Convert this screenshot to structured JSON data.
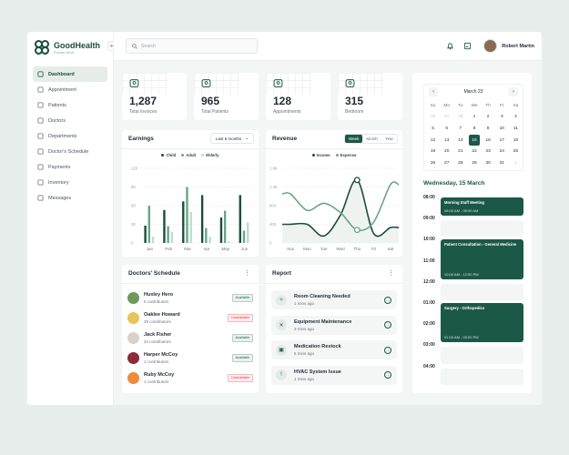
{
  "brand": {
    "name": "GoodHealth",
    "tagline": "Private clinic"
  },
  "sidebar": {
    "items": [
      {
        "label": "Dashboard",
        "icon": "grid-icon",
        "active": true
      },
      {
        "label": "Appointment",
        "icon": "calendar-icon"
      },
      {
        "label": "Patients",
        "icon": "patient-icon"
      },
      {
        "label": "Doctors",
        "icon": "stethoscope-icon"
      },
      {
        "label": "Departments",
        "icon": "building-icon"
      },
      {
        "label": "Doctor's Schedule",
        "icon": "schedule-icon"
      },
      {
        "label": "Payments",
        "icon": "card-icon"
      },
      {
        "label": "Inventory",
        "icon": "box-icon"
      },
      {
        "label": "Messages",
        "icon": "chat-icon"
      }
    ]
  },
  "header": {
    "search_placeholder": "Search",
    "user_name": "Robert Martin"
  },
  "stats": [
    {
      "value": "1,287",
      "label": "Total Invoices",
      "icon": "users-icon"
    },
    {
      "value": "965",
      "label": "Total Patients",
      "icon": "user-circle-icon"
    },
    {
      "value": "128",
      "label": "Appointments",
      "icon": "calendar-check-icon"
    },
    {
      "value": "315",
      "label": "Bedroom",
      "icon": "bed-icon"
    }
  ],
  "earnings": {
    "title": "Earnings",
    "filter": "Last 6 months"
  },
  "revenue": {
    "title": "Revenue",
    "tabs": [
      "Week",
      "Month",
      "Year"
    ],
    "active_tab": "Week"
  },
  "colors": {
    "accent": "#1b5848",
    "child": "#1b4d3e",
    "adult": "#6aa58a",
    "elderly": "#bcdccb",
    "unavailable": "#d9394e"
  },
  "chart_data": [
    {
      "type": "bar",
      "categories": [
        "Jan",
        "Feb",
        "Mar",
        "Apr",
        "May",
        "Jun"
      ],
      "ylim": [
        0,
        120
      ],
      "yticks": [
        "0",
        "30",
        "60",
        "90",
        "120"
      ],
      "legend": "top",
      "series": [
        {
          "name": "Child",
          "values": [
            28,
            53,
            67,
            77,
            41,
            77
          ]
        },
        {
          "name": "Adult",
          "values": [
            60,
            27,
            90,
            24,
            52,
            20
          ]
        },
        {
          "name": "Elderly",
          "values": [
            10,
            18,
            50,
            10,
            3,
            33
          ]
        }
      ]
    },
    {
      "type": "line",
      "categories": [
        "Sun",
        "Mon",
        "Tue",
        "Wed",
        "Thu",
        "Fri",
        "Sat"
      ],
      "ylim": [
        0,
        1600
      ],
      "yticks": [
        "0",
        "400",
        "800",
        "1.2K",
        "1.6K"
      ],
      "legend": "top",
      "series": [
        {
          "name": "Income",
          "values": [
            400,
            400,
            150,
            600,
            1350,
            200,
            330
          ]
        },
        {
          "name": "Expense",
          "values": [
            1050,
            700,
            850,
            650,
            280,
            450,
            1250
          ]
        }
      ]
    }
  ],
  "doctors": {
    "title": "Doctors' Schedule",
    "items": [
      {
        "name": "Huxley Hero",
        "contrib": "6 contributors",
        "status": "Available",
        "ok": true,
        "c": "#6b9a5a"
      },
      {
        "name": "Oaklee Howard",
        "contrib": "29 contributors",
        "status": "Unavailable",
        "ok": false,
        "c": "#e8c35a"
      },
      {
        "name": "Jack Fisher",
        "contrib": "34 contributors",
        "status": "Available",
        "ok": true,
        "c": "#d8d2c8"
      },
      {
        "name": "Harper McCoy",
        "contrib": "1 contributors",
        "status": "Available",
        "ok": true,
        "c": "#8a2c3a"
      },
      {
        "name": "Ruby McCoy",
        "contrib": "1 contributors",
        "status": "Unavailable",
        "ok": false,
        "c": "#ef8a3a"
      }
    ]
  },
  "report": {
    "title": "Report",
    "items": [
      {
        "title": "Room Cleaning Needed",
        "time": "1 mins ago",
        "icon": "cleaning-icon"
      },
      {
        "title": "Equipment Maintenance",
        "time": "3 mins ago",
        "icon": "tools-icon"
      },
      {
        "title": "Medication Restock",
        "time": "5 mins ago",
        "icon": "medkit-icon"
      },
      {
        "title": "HVAC System Issue",
        "time": "1 mins ago",
        "icon": "alert-icon"
      }
    ]
  },
  "calendar": {
    "month": "March 23",
    "weekdays": [
      "Su",
      "Mo",
      "Tu",
      "We",
      "Th",
      "Fr",
      "Sa"
    ],
    "days": [
      "26",
      "27",
      "28",
      "1",
      "2",
      "3",
      "4",
      "5",
      "6",
      "7",
      "8",
      "9",
      "10",
      "11",
      "12",
      "13",
      "14",
      "15",
      "16",
      "17",
      "18",
      "19",
      "20",
      "21",
      "22",
      "23",
      "24",
      "25",
      "26",
      "27",
      "28",
      "29",
      "30",
      "31",
      "1"
    ],
    "selected": "15"
  },
  "schedule": {
    "date": "Wednesday, 15 March",
    "times": [
      "08:00",
      "09:00",
      "10:00",
      "11:00",
      "12:00",
      "01:00",
      "02:00",
      "03:00",
      "04:00"
    ],
    "events": [
      {
        "title": "Morning Staff Meeting",
        "time": "08:00 AM - 09:00 AM"
      },
      {
        "title": "Patient Consultation - General Medicine",
        "time": "10:00 AM - 12:00 PM"
      },
      {
        "title": "Surgery - Orthopedics",
        "time": "01:00 AM - 03:00 PM"
      }
    ]
  }
}
